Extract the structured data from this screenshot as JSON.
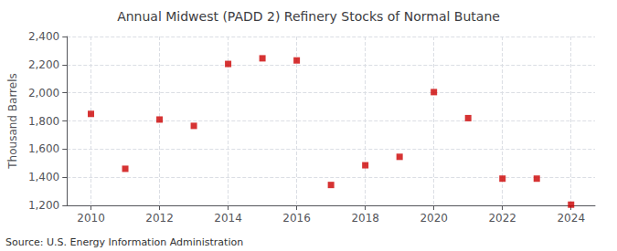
{
  "chart_data": {
    "type": "scatter",
    "title": "Annual Midwest (PADD 2) Refinery Stocks of Normal Butane",
    "ylabel": "Thousand Barrels",
    "annotations": [
      "Source: U.S. Energy Information Administration"
    ],
    "x": [
      2010,
      2011,
      2012,
      2013,
      2014,
      2015,
      2016,
      2017,
      2018,
      2019,
      2020,
      2021,
      2022,
      2023,
      2024
    ],
    "values": [
      1850,
      1460,
      1810,
      1765,
      2205,
      2245,
      2230,
      1345,
      1485,
      1545,
      2005,
      1820,
      1390,
      1390,
      1205
    ],
    "color": "#cc0000",
    "marker": "square",
    "xlim": [
      2009.3,
      2024.7
    ],
    "xticks": [
      2010,
      2012,
      2014,
      2016,
      2018,
      2020,
      2022,
      2024
    ],
    "ylim": [
      1200,
      2400
    ],
    "yticks": [
      {
        "value": 1200,
        "label": "1,200"
      },
      {
        "value": 1400,
        "label": "1,400"
      },
      {
        "value": 1600,
        "label": "1,600"
      },
      {
        "value": 1800,
        "label": "1,800"
      },
      {
        "value": 2000,
        "label": "2,000"
      },
      {
        "value": 2200,
        "label": "2,200"
      },
      {
        "value": 2400,
        "label": "2,400"
      }
    ],
    "grid": true
  }
}
